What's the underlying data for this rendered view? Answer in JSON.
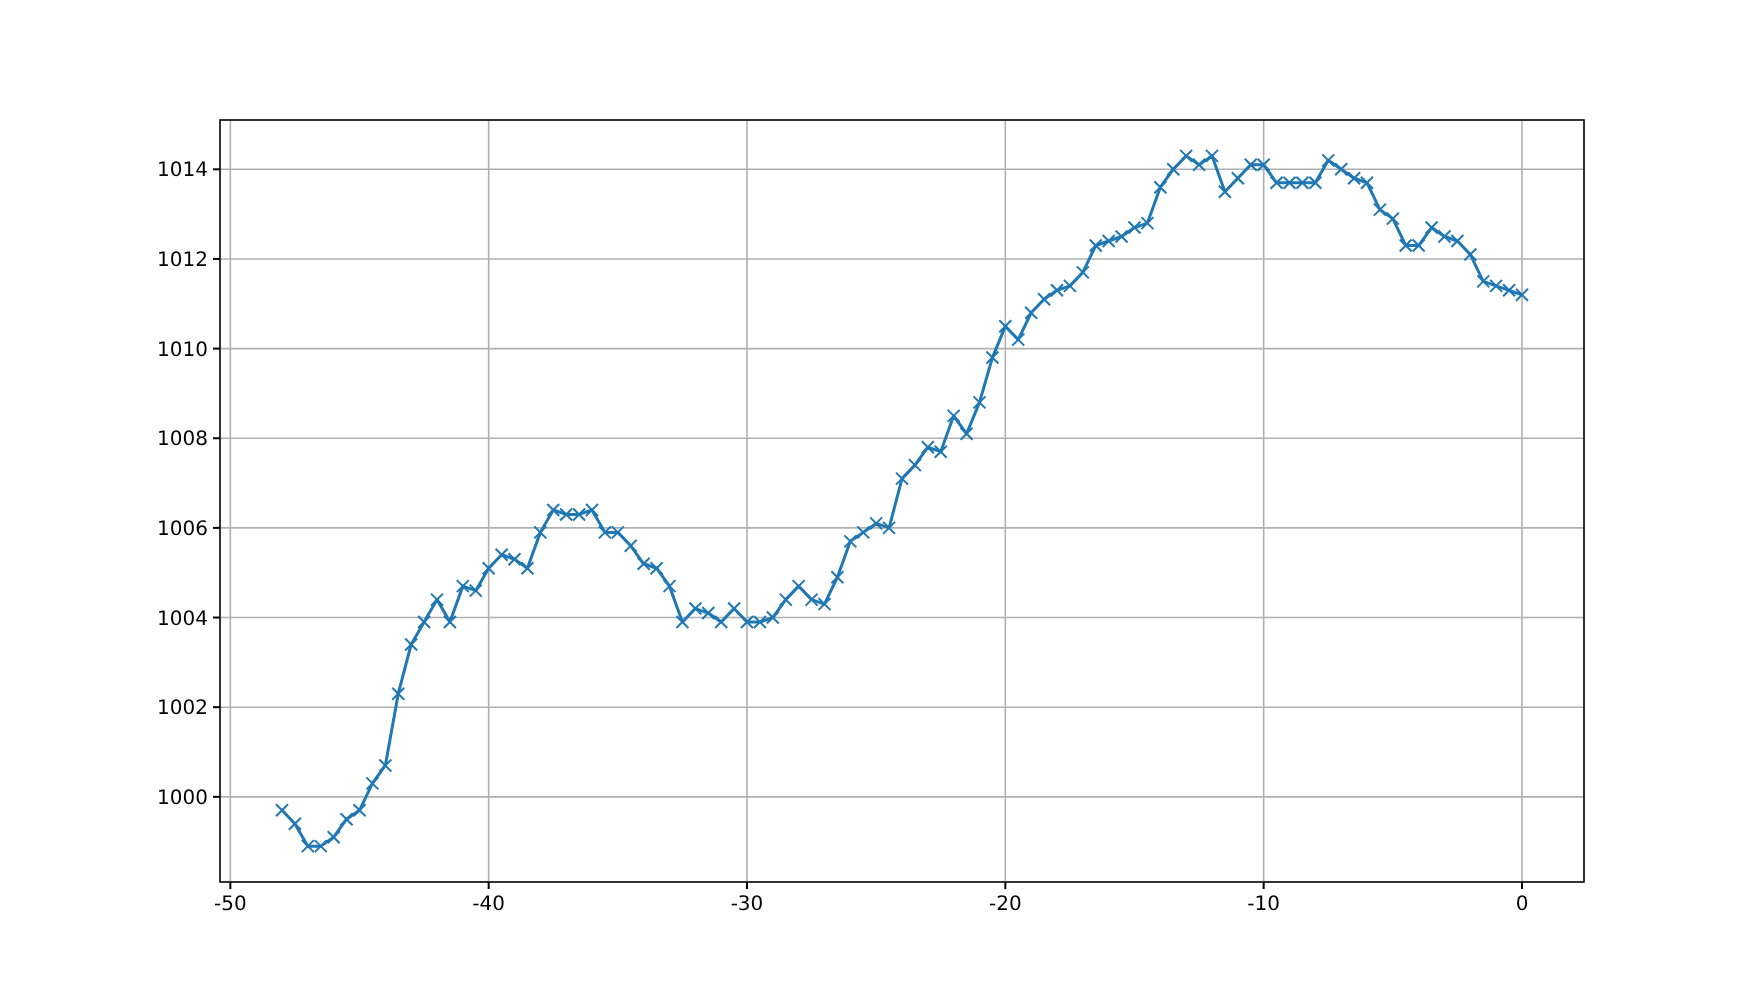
{
  "chart_data": {
    "type": "line",
    "marker": "cross",
    "grid": true,
    "xlim": [
      -50.4,
      2.4
    ],
    "ylim": [
      998.1,
      1015.1
    ],
    "xticks": [
      -50,
      -40,
      -30,
      -20,
      -10,
      0
    ],
    "yticks": [
      1000,
      1002,
      1004,
      1006,
      1008,
      1010,
      1012,
      1014
    ],
    "x": [
      -48,
      -47.5,
      -47,
      -46.5,
      -46,
      -45.5,
      -45,
      -44.5,
      -44,
      -43.5,
      -43,
      -42.5,
      -42,
      -41.5,
      -41,
      -40.5,
      -40,
      -39.5,
      -39,
      -38.5,
      -38,
      -37.5,
      -37,
      -36.5,
      -36,
      -35.5,
      -35,
      -34.5,
      -34,
      -33.5,
      -33,
      -32.5,
      -32,
      -31.5,
      -31,
      -30.5,
      -30,
      -29.5,
      -29,
      -28.5,
      -28,
      -27.5,
      -27,
      -26.5,
      -26,
      -25.5,
      -25,
      -24.5,
      -24,
      -23.5,
      -23,
      -22.5,
      -22,
      -21.5,
      -21,
      -20.5,
      -20,
      -19.5,
      -19,
      -18.5,
      -18,
      -17.5,
      -17,
      -16.5,
      -16,
      -15.5,
      -15,
      -14.5,
      -14,
      -13.5,
      -13,
      -12.5,
      -12,
      -11.5,
      -11,
      -10.5,
      -10,
      -9.5,
      -9,
      -8.5,
      -8,
      -7.5,
      -7,
      -6.5,
      -6,
      -5.5,
      -5,
      -4.5,
      -4,
      -3.5,
      -3,
      -2.5,
      -2,
      -1.5,
      -1,
      -0.5,
      0
    ],
    "series": [
      {
        "color": "#1f77b4",
        "values": [
          999.7,
          999.4,
          998.9,
          998.9,
          999.1,
          999.5,
          999.7,
          1000.3,
          1000.7,
          1002.3,
          1003.4,
          1003.9,
          1004.4,
          1003.9,
          1004.7,
          1004.6,
          1005.1,
          1005.4,
          1005.3,
          1005.1,
          1005.9,
          1006.4,
          1006.3,
          1006.3,
          1006.4,
          1005.9,
          1005.9,
          1005.6,
          1005.2,
          1005.1,
          1004.7,
          1003.9,
          1004.2,
          1004.1,
          1003.9,
          1004.2,
          1003.9,
          1003.9,
          1004.0,
          1004.4,
          1004.7,
          1004.4,
          1004.3,
          1004.9,
          1005.7,
          1005.9,
          1006.1,
          1006.0,
          1007.1,
          1007.4,
          1007.8,
          1007.7,
          1008.5,
          1008.1,
          1008.8,
          1009.8,
          1010.5,
          1010.2,
          1010.8,
          1011.1,
          1011.3,
          1011.4,
          1011.7,
          1012.3,
          1012.4,
          1012.5,
          1012.7,
          1012.8,
          1013.6,
          1014.0,
          1014.3,
          1014.1,
          1014.3,
          1013.5,
          1013.8,
          1014.1,
          1014.1,
          1013.7,
          1013.7,
          1013.7,
          1013.7,
          1014.2,
          1014.0,
          1013.8,
          1013.7,
          1013.1,
          1012.9,
          1012.3,
          1012.3,
          1012.7,
          1012.5,
          1012.4,
          1012.1,
          1011.5,
          1011.4,
          1011.3,
          1011.2
        ]
      }
    ]
  }
}
